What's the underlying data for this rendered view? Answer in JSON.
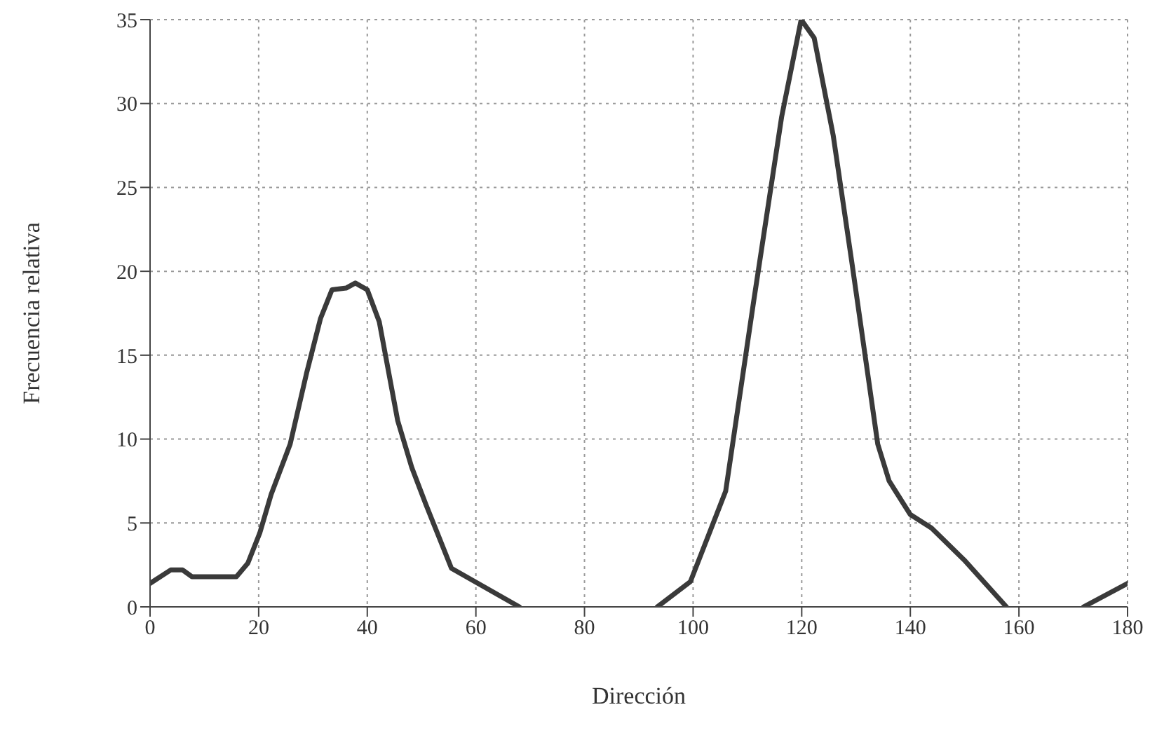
{
  "chart_data": {
    "type": "line",
    "xlabel": "Dirección",
    "ylabel": "Frecuencia relativa",
    "x": [
      0,
      3.8,
      6,
      7.7,
      15.9,
      18,
      20.2,
      22.3,
      25.8,
      28.8,
      31.4,
      33.5,
      36.1,
      37.8,
      40,
      42.2,
      45.6,
      48.2,
      50.8,
      55.5,
      68,
      80,
      93.4,
      99.5,
      106,
      111.1,
      116.3,
      119.9,
      122.3,
      125.8,
      129.2,
      134,
      136.1,
      140,
      143.9,
      149.9,
      157.7,
      165,
      171.9,
      180
    ],
    "series": [
      {
        "color": "#3a3a3a",
        "values": [
          1.4,
          2.2,
          2.2,
          1.8,
          1.8,
          2.6,
          4.4,
          6.7,
          9.7,
          13.9,
          17.2,
          18.9,
          19,
          19.3,
          18.9,
          17,
          11.1,
          8.3,
          6.1,
          2.3,
          0,
          null,
          0,
          1.5,
          6.9,
          18.1,
          29.2,
          35,
          33.9,
          28.1,
          20.6,
          9.7,
          7.5,
          5.5,
          4.7,
          2.8,
          0,
          null,
          0,
          1.4
        ]
      }
    ],
    "xlim": [
      0,
      180
    ],
    "xticks": [
      0,
      20,
      40,
      60,
      80,
      100,
      120,
      140,
      160,
      180
    ],
    "ylim": [
      0,
      35
    ],
    "yticks": [
      0,
      5,
      10,
      15,
      20,
      25,
      30,
      35
    ],
    "grid": true,
    "legend": false,
    "marker": "none",
    "line_style": "solid"
  }
}
